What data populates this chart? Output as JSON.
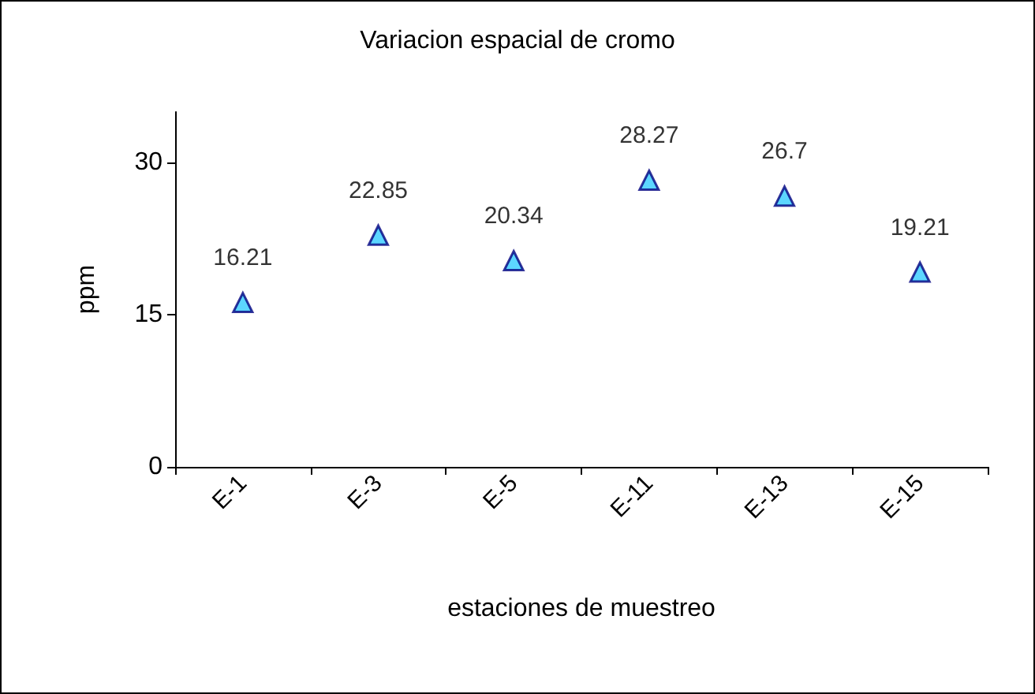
{
  "chart_data": {
    "type": "scatter",
    "title": "Variacion espacial de cromo",
    "xlabel": "estaciones de muestreo",
    "ylabel": "ppm",
    "categories": [
      "E-1",
      "E-3",
      "E-5",
      "E-11",
      "E-13",
      "E-15"
    ],
    "values": [
      16.21,
      22.85,
      20.34,
      28.27,
      26.7,
      19.21
    ],
    "color": "#33ccff",
    "marker": "triangle",
    "data_labels": true,
    "ylim": [
      0,
      35
    ],
    "yticks": [
      0,
      15,
      30
    ],
    "grid": false
  }
}
